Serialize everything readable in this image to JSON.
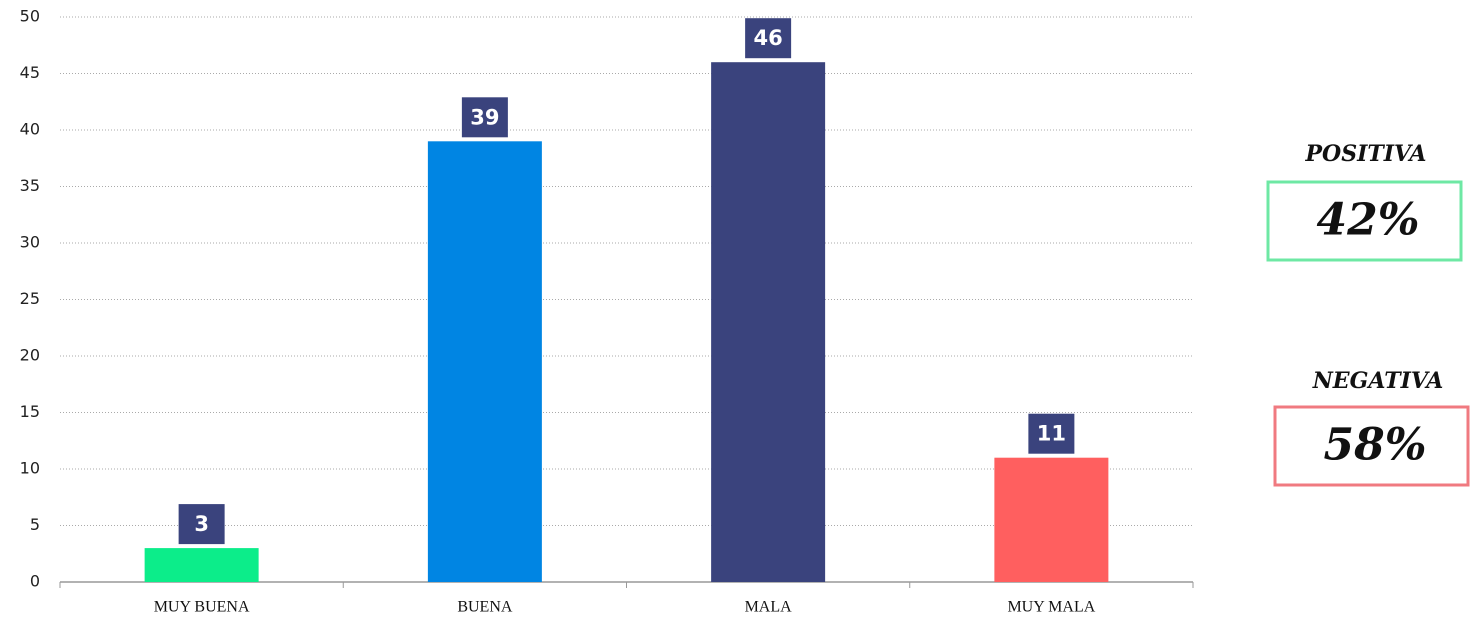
{
  "chart_data": {
    "type": "bar",
    "categories": [
      "MUY BUENA",
      "BUENA",
      "MALA",
      "MUY MALA"
    ],
    "values": [
      3,
      39,
      46,
      11
    ],
    "colors": [
      "#0ced8a",
      "#0085e3",
      "#3a437d",
      "#ff5f5f"
    ],
    "label_box_color": "#3a437d",
    "ylim": [
      0,
      50
    ],
    "yticks": [
      0,
      5,
      10,
      15,
      20,
      25,
      30,
      35,
      40,
      45,
      50
    ],
    "grid": true,
    "annotations": [
      {
        "title": "POSITIVA",
        "value": 42,
        "value_label": "42%",
        "color": "#6ee8a4"
      },
      {
        "title": "NEGATIVA",
        "value": 58,
        "value_label": "58%",
        "color": "#f07a80"
      }
    ]
  }
}
